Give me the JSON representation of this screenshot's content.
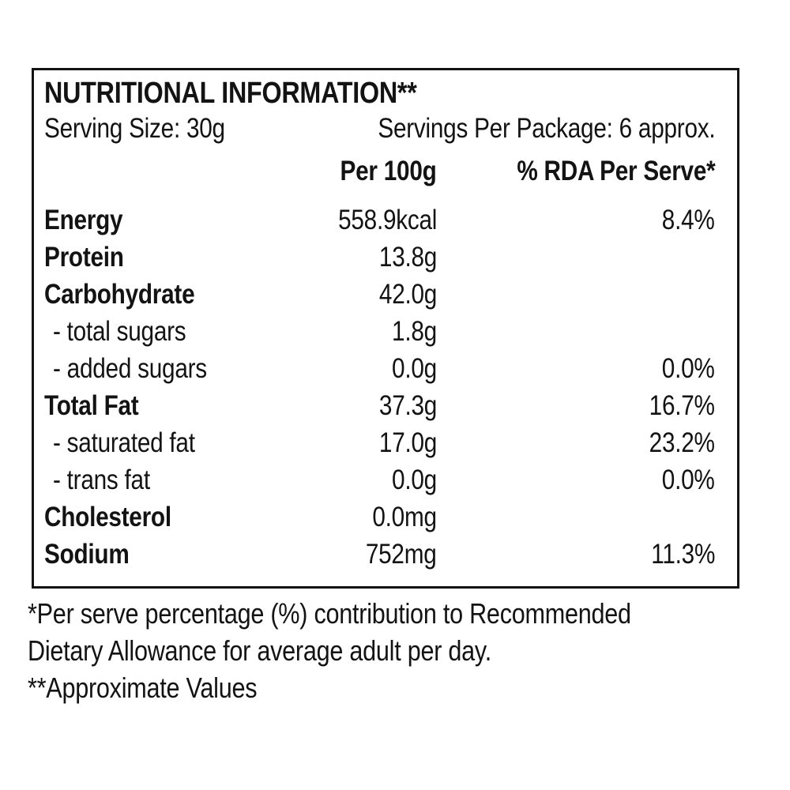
{
  "label": {
    "title": "NUTRITIONAL INFORMATION**",
    "serving_size": "Serving Size: 30g",
    "servings_per_package": "Servings Per Package: 6 approx.",
    "columns": {
      "per_100g": "Per 100g",
      "rda": "% RDA Per Serve*"
    },
    "rows": [
      {
        "name": "Energy",
        "bold": true,
        "per_100g": "558.9kcal",
        "rda": "8.4%"
      },
      {
        "name": "Protein",
        "bold": true,
        "per_100g": "13.8g",
        "rda": ""
      },
      {
        "name": "Carbohydrate",
        "bold": true,
        "per_100g": "42.0g",
        "rda": ""
      },
      {
        "name": "- total sugars",
        "bold": false,
        "per_100g": "1.8g",
        "rda": ""
      },
      {
        "name": "- added sugars",
        "bold": false,
        "per_100g": "0.0g",
        "rda": "0.0%"
      },
      {
        "name": "Total Fat",
        "bold": true,
        "per_100g": "37.3g",
        "rda": "16.7%"
      },
      {
        "name": "- saturated fat",
        "bold": false,
        "per_100g": "17.0g",
        "rda": "23.2%"
      },
      {
        "name": "- trans fat",
        "bold": false,
        "per_100g": "0.0g",
        "rda": "0.0%"
      },
      {
        "name": "Cholesterol",
        "bold": true,
        "per_100g": "0.0mg",
        "rda": ""
      },
      {
        "name": "Sodium",
        "bold": true,
        "per_100g": "752mg",
        "rda": "11.3%"
      }
    ],
    "footnotes": [
      "*Per serve percentage (%) contribution to Recommended",
      "Dietary Allowance for average adult per day.",
      "**Approximate Values"
    ],
    "colors": {
      "text": "#131313",
      "border": "#131313",
      "background": "#ffffff"
    }
  }
}
